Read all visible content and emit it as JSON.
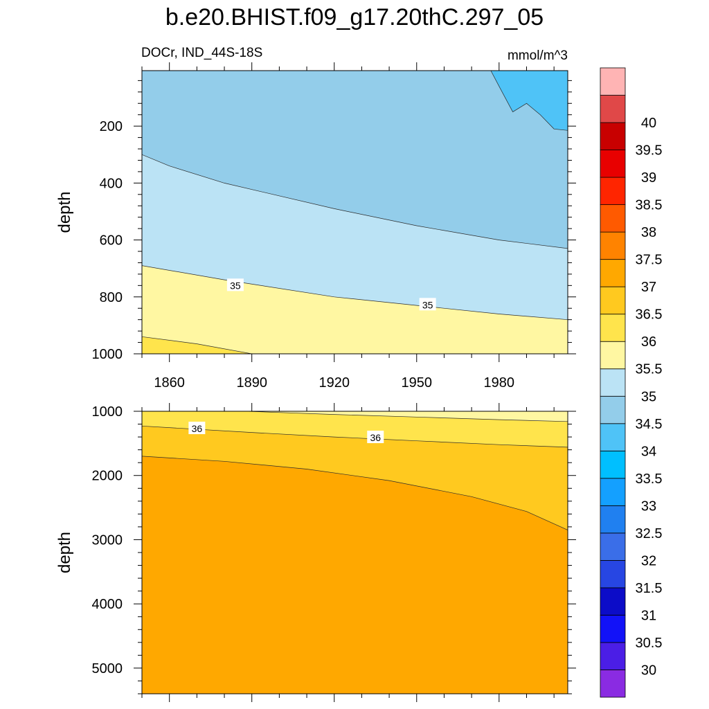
{
  "chart_data": {
    "type": "contour",
    "title": "b.e20.BHIST.f09_g17.20thC.297_05",
    "subtitle_left": "DOCr, IND_44S-18S",
    "subtitle_right": "mmol/m^3",
    "xlabel": "",
    "x_range": [
      1850,
      2005
    ],
    "x_ticks": [
      "1860",
      "1890",
      "1920",
      "1950",
      "1980"
    ],
    "panels": [
      {
        "name": "upper",
        "ylabel": "depth",
        "y_range": [
          5,
          1000
        ],
        "y_ticks": [
          "200",
          "400",
          "600",
          "800",
          "1000"
        ],
        "contour_labels": [
          {
            "text": "35",
            "x": 1884,
            "y": 760
          },
          {
            "text": "35",
            "x": 1954,
            "y": 828
          }
        ],
        "contours": [
          {
            "level": 34.0,
            "boundary_years": [
              1850,
              1860,
              1880,
              1920,
              1950,
              1980,
              2005
            ],
            "boundary_depths": [
              300,
              340,
              400,
              490,
              550,
              600,
              630
            ]
          },
          {
            "level": 35.0,
            "boundary_years": [
              1850,
              1880,
              1920,
              1950,
              1980,
              2005
            ],
            "boundary_depths": [
              690,
              740,
              800,
              830,
              860,
              880
            ]
          },
          {
            "level": 35.5,
            "boundary_years": [
              1850,
              1870,
              1890
            ],
            "boundary_depths": [
              940,
              965,
              1000
            ]
          },
          {
            "level": 33.5,
            "region": "upper-right patch",
            "boundary_years": [
              1977,
              1980,
              1985,
              1990,
              1995,
              2000,
              2005
            ],
            "boundary_depths": [
              5,
              60,
              150,
              120,
              160,
              210,
              215
            ]
          }
        ]
      },
      {
        "name": "lower",
        "ylabel": "depth",
        "y_range": [
          1000,
          5400
        ],
        "y_ticks": [
          "1000",
          "2000",
          "3000",
          "4000",
          "5000"
        ],
        "contour_labels": [
          {
            "text": "36",
            "x": 1870,
            "y": 1270
          },
          {
            "text": "36",
            "x": 1935,
            "y": 1410
          }
        ],
        "contours": [
          {
            "level": 35.5,
            "boundary_years": [
              1888,
              1920,
              1950,
              1980,
              2005
            ],
            "boundary_depths": [
              1000,
              1050,
              1090,
              1130,
              1160
            ]
          },
          {
            "level": 36.0,
            "boundary_years": [
              1850,
              1890,
              1920,
              1950,
              1980,
              2005
            ],
            "boundary_depths": [
              1230,
              1330,
              1400,
              1460,
              1520,
              1560
            ]
          },
          {
            "level": 36.5,
            "boundary_years": [
              1850,
              1880,
              1910,
              1940,
              1970,
              1990,
              2005
            ],
            "boundary_depths": [
              1700,
              1780,
              1900,
              2080,
              2330,
              2560,
              2850
            ]
          }
        ]
      }
    ],
    "colorbar": {
      "labels": [
        "30",
        "30.5",
        "31",
        "31.5",
        "32",
        "32.5",
        "33",
        "33.5",
        "34",
        "34.5",
        "35",
        "35.5",
        "36",
        "36.5",
        "37",
        "37.5",
        "38",
        "38.5",
        "39",
        "39.5",
        "40"
      ],
      "colors_bottom_to_top": [
        "#8a2be2",
        "#4b1ee6",
        "#1212f8",
        "#0c0cc8",
        "#2746e3",
        "#3a6ee8",
        "#2080f0",
        "#14a0ff",
        "#00bfff",
        "#4fc3f7",
        "#93cdea",
        "#bbe3f5",
        "#fff7a2",
        "#ffe44c",
        "#ffc91f",
        "#ffa800",
        "#ff8300",
        "#ff5a00",
        "#ff2500",
        "#e80000",
        "#c80000",
        "#e04848",
        "#ffb4b4"
      ]
    },
    "level_colors": {
      "33.5": "#4fc3f7",
      "34": "#93cdea",
      "34.5": "#bbe3f5",
      "35": "#fff7a2",
      "35.5": "#ffe44c",
      "36": "#ffc91f",
      "36.5": "#ffa800"
    }
  }
}
